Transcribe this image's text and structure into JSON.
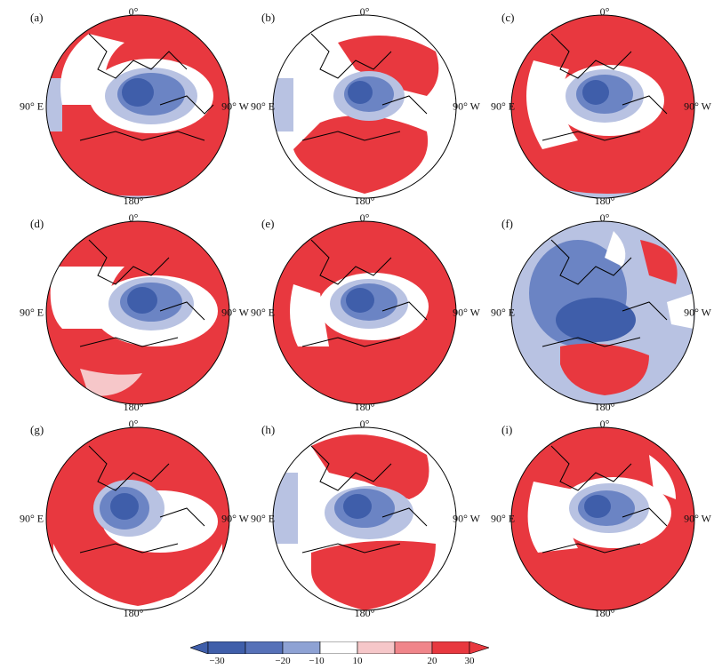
{
  "colors": {
    "neg3": "#3f5eaa",
    "neg2": "#6b84c4",
    "neg1": "#b8c2e2",
    "zero": "#ffffff",
    "pos1": "#f6c7c9",
    "pos2": "#f0858a",
    "pos3": "#e8383f"
  },
  "axis_labels": {
    "top": "0°",
    "left": "90° E",
    "right": "90° W",
    "bottom": "180°"
  },
  "panels": [
    {
      "label": "(a)"
    },
    {
      "label": "(b)"
    },
    {
      "label": "(c)"
    },
    {
      "label": "(d)"
    },
    {
      "label": "(e)"
    },
    {
      "label": "(f)"
    },
    {
      "label": "(g)"
    },
    {
      "label": "(h)"
    },
    {
      "label": "(i)"
    }
  ],
  "colorbar": {
    "ticks": [
      "−30",
      "−20",
      "−10",
      "10",
      "20",
      "30"
    ]
  }
}
